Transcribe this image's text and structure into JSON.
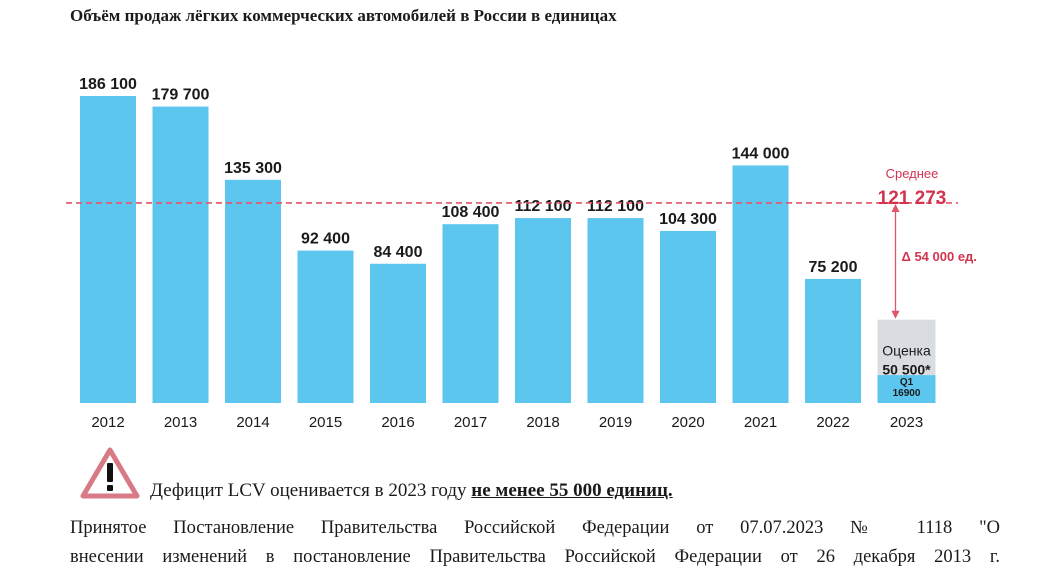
{
  "header": {
    "title": "Объём продаж лёгких коммерческих автомобилей в России в единицах"
  },
  "chart_data": {
    "type": "bar",
    "categories": [
      "2012",
      "2013",
      "2014",
      "2015",
      "2016",
      "2017",
      "2018",
      "2019",
      "2020",
      "2021",
      "2022",
      "2023"
    ],
    "values": [
      186100,
      179700,
      135300,
      92400,
      84400,
      108400,
      112100,
      112100,
      104300,
      144000,
      75200,
      50500
    ],
    "value_labels": [
      "186 100",
      "179 700",
      "135 300",
      "92 400",
      "84 400",
      "108 400",
      "112 100",
      "112 100",
      "104 300",
      "144 000",
      "75 200",
      ""
    ],
    "title": "Объём продаж лёгких коммерческих автомобилей в России в единицах",
    "xlabel": "",
    "ylabel": "",
    "ylim": [
      0,
      190000
    ],
    "grid": false,
    "average": {
      "label": "Среднее",
      "value": 121273,
      "value_label": "121 273",
      "line_style": "dashed"
    },
    "delta_annotation": "Δ 54 000 ед.",
    "estimate": {
      "category": "2023",
      "label": "Оценка",
      "value": 50500,
      "value_label": "50 500*",
      "q1_label": "Q1",
      "q1_value": 16900,
      "q1_value_label": "16900"
    },
    "colors": {
      "bar": "#5cc6ef",
      "estimate_bar": "#d9dde2",
      "q1_bar": "#5cc6ef",
      "average_line": "#e05569",
      "annotation": "#d2344f"
    }
  },
  "notes": {
    "warning_icon": "warning-triangle-icon",
    "deficit_prefix": "Дефицит LCV оценивается в 2023 году ",
    "deficit_emphasis": "не менее 55 000 единиц.",
    "decree_line1": "Принятое Постановление Правительства Российской Федерации от 07.07.2023 № 1118 \"О",
    "decree_line2": "внесении изменений в постановление Правительства Российской Федерации от 26 декабря 2013 г."
  }
}
